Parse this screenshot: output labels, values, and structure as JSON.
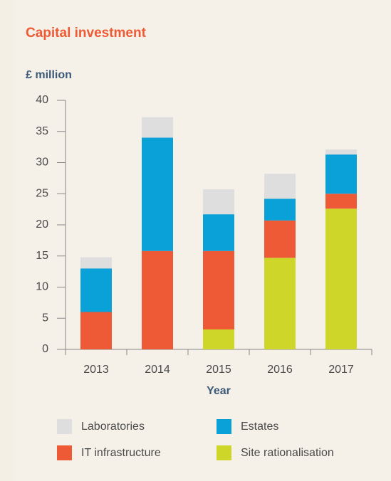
{
  "chart_data": {
    "type": "bar",
    "stacked": true,
    "title": "Capital investment",
    "y_label": "£ million",
    "x_label": "Year",
    "categories": [
      "2013",
      "2014",
      "2015",
      "2016",
      "2017"
    ],
    "series": [
      {
        "name": "Laboratories",
        "color": "#dedede",
        "values": [
          1.8,
          3.3,
          4,
          4,
          0.8
        ]
      },
      {
        "name": "Estates",
        "color": "#0aa0d8",
        "values": [
          7,
          18.2,
          5.9,
          3.5,
          6.3
        ]
      },
      {
        "name": "IT infrastructure",
        "color": "#ee5a35",
        "values": [
          6,
          15.8,
          12.6,
          6,
          2.4
        ]
      },
      {
        "name": "Site rationalisation",
        "color": "#cfd62a",
        "values": [
          0,
          0,
          3.2,
          14.7,
          22.6
        ]
      }
    ],
    "ylim": [
      0,
      40
    ],
    "yticks": [
      0,
      5,
      10,
      15,
      20,
      25,
      30,
      35,
      40
    ]
  }
}
